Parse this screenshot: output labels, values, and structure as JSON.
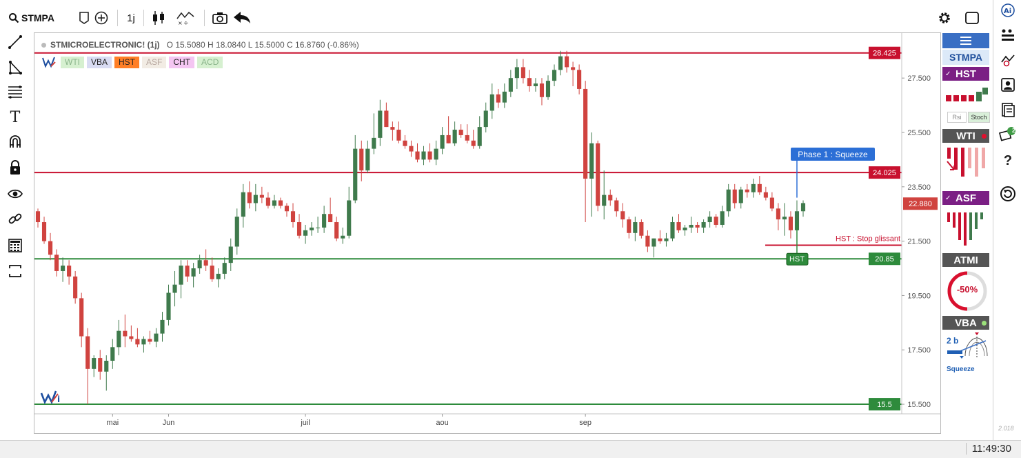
{
  "toolbar": {
    "symbol": "STMPA",
    "interval": "1j"
  },
  "legend": {
    "name": "STMICROELECTRONIC! (1j)",
    "ohlc": "O 15.5080 H 18.0840 L 15.5000 C 16.8760 (-0.86%)",
    "indicators": [
      {
        "label": "WTI",
        "bg": "#d6f0d0",
        "color": "#8ab48a"
      },
      {
        "label": "VBA",
        "bg": "#d9dcf3",
        "color": "#222222"
      },
      {
        "label": "HST",
        "bg": "#ff7f27",
        "color": "#222222"
      },
      {
        "label": "ASF",
        "bg": "#f2ece4",
        "color": "#b8a8a0"
      },
      {
        "label": "CHT",
        "bg": "#f4c6f2",
        "color": "#222222"
      },
      {
        "label": "ACD",
        "bg": "#d6f0d0",
        "color": "#8ab48a"
      }
    ]
  },
  "chart_data": {
    "type": "candlestick",
    "y_ticks": [
      "27.500",
      "25.500",
      "23.500",
      "21.500",
      "19.500",
      "17.500",
      "15.500"
    ],
    "x_ticks": [
      "mai",
      "Jun",
      "juil",
      "aou",
      "sep"
    ],
    "ylim": [
      15.4,
      28.9
    ],
    "colors": {
      "up": "#3f7a4c",
      "down": "#d0433f"
    },
    "candles": [
      [
        22.6,
        22.7,
        22.0,
        22.2
      ],
      [
        22.2,
        22.4,
        21.4,
        21.5
      ],
      [
        21.5,
        21.8,
        20.8,
        21.0
      ],
      [
        21.0,
        21.2,
        20.2,
        20.4
      ],
      [
        20.4,
        20.9,
        20.0,
        20.6
      ],
      [
        20.6,
        20.8,
        19.9,
        20.2
      ],
      [
        20.2,
        20.4,
        19.2,
        19.4
      ],
      [
        19.4,
        19.6,
        17.6,
        18.0
      ],
      [
        18.0,
        18.3,
        15.5,
        16.8
      ],
      [
        16.8,
        17.3,
        16.5,
        17.2
      ],
      [
        17.2,
        17.5,
        16.4,
        16.7
      ],
      [
        16.7,
        17.3,
        16.0,
        17.1
      ],
      [
        17.1,
        17.9,
        16.8,
        17.6
      ],
      [
        17.6,
        18.6,
        17.3,
        18.2
      ],
      [
        18.2,
        18.8,
        17.6,
        18.0
      ],
      [
        18.0,
        18.4,
        17.8,
        17.9
      ],
      [
        17.9,
        18.3,
        17.6,
        17.7
      ],
      [
        17.7,
        18.0,
        17.4,
        17.9
      ],
      [
        17.9,
        18.2,
        17.7,
        17.8
      ],
      [
        17.8,
        18.3,
        17.6,
        18.1
      ],
      [
        18.1,
        18.9,
        17.8,
        18.6
      ],
      [
        18.6,
        19.9,
        18.4,
        19.6
      ],
      [
        19.6,
        20.4,
        19.1,
        19.9
      ],
      [
        19.9,
        20.8,
        19.4,
        20.6
      ],
      [
        20.6,
        20.8,
        20.0,
        20.2
      ],
      [
        20.2,
        20.7,
        19.8,
        20.5
      ],
      [
        20.5,
        21.0,
        20.3,
        20.8
      ],
      [
        20.8,
        21.2,
        20.4,
        20.6
      ],
      [
        20.6,
        20.9,
        20.0,
        20.1
      ],
      [
        20.1,
        20.5,
        19.8,
        20.3
      ],
      [
        20.3,
        20.9,
        20.1,
        20.7
      ],
      [
        20.7,
        21.6,
        20.4,
        21.3
      ],
      [
        21.3,
        22.7,
        21.0,
        22.4
      ],
      [
        22.4,
        23.6,
        22.0,
        23.3
      ],
      [
        23.3,
        23.7,
        22.7,
        22.9
      ],
      [
        22.9,
        23.6,
        22.6,
        23.2
      ],
      [
        23.2,
        23.5,
        22.9,
        23.1
      ],
      [
        23.1,
        23.3,
        22.7,
        22.8
      ],
      [
        22.8,
        23.2,
        22.7,
        23.0
      ],
      [
        23.0,
        23.1,
        22.7,
        22.8
      ],
      [
        22.8,
        22.9,
        22.4,
        22.6
      ],
      [
        22.6,
        22.9,
        22.0,
        22.2
      ],
      [
        22.2,
        22.5,
        21.6,
        21.7
      ],
      [
        21.7,
        22.1,
        21.4,
        21.9
      ],
      [
        21.9,
        22.2,
        21.7,
        22.0
      ],
      [
        22.0,
        22.4,
        21.8,
        22.0
      ],
      [
        22.0,
        22.8,
        21.8,
        22.5
      ],
      [
        22.5,
        23.1,
        22.2,
        22.2
      ],
      [
        22.2,
        22.4,
        21.5,
        21.6
      ],
      [
        21.6,
        22.0,
        21.4,
        21.7
      ],
      [
        21.7,
        23.5,
        21.6,
        23.0
      ],
      [
        23.0,
        25.4,
        22.9,
        24.9
      ],
      [
        24.9,
        25.2,
        23.7,
        24.1
      ],
      [
        24.1,
        25.2,
        24.0,
        24.9
      ],
      [
        24.9,
        26.2,
        24.7,
        25.3
      ],
      [
        25.3,
        26.7,
        25.0,
        26.3
      ],
      [
        26.3,
        26.6,
        25.7,
        25.7
      ],
      [
        25.7,
        25.9,
        25.2,
        25.6
      ],
      [
        25.6,
        25.9,
        25.1,
        25.2
      ],
      [
        25.2,
        25.4,
        24.9,
        25.0
      ],
      [
        25.0,
        25.2,
        24.6,
        24.8
      ],
      [
        24.8,
        25.1,
        24.4,
        24.5
      ],
      [
        24.5,
        25.0,
        24.3,
        24.8
      ],
      [
        24.8,
        25.1,
        24.4,
        24.5
      ],
      [
        24.5,
        25.2,
        24.3,
        24.9
      ],
      [
        24.9,
        25.7,
        24.7,
        25.4
      ],
      [
        25.4,
        26.1,
        25.1,
        25.1
      ],
      [
        25.1,
        25.9,
        25.0,
        25.6
      ],
      [
        25.6,
        25.8,
        25.3,
        25.4
      ],
      [
        25.4,
        25.8,
        25.1,
        25.2
      ],
      [
        25.2,
        25.6,
        24.9,
        25.0
      ],
      [
        25.0,
        26.1,
        24.9,
        25.7
      ],
      [
        25.7,
        26.6,
        25.5,
        26.3
      ],
      [
        26.3,
        27.3,
        26.0,
        26.9
      ],
      [
        26.9,
        27.1,
        26.4,
        26.6
      ],
      [
        26.6,
        27.3,
        26.4,
        27.0
      ],
      [
        27.0,
        27.8,
        26.8,
        27.5
      ],
      [
        27.5,
        28.2,
        27.1,
        27.9
      ],
      [
        27.9,
        28.2,
        27.3,
        27.5
      ],
      [
        27.5,
        27.8,
        27.0,
        27.2
      ],
      [
        27.2,
        27.5,
        27.0,
        27.3
      ],
      [
        27.3,
        27.5,
        26.5,
        26.8
      ],
      [
        26.8,
        27.6,
        26.7,
        27.4
      ],
      [
        27.4,
        28.0,
        27.2,
        27.8
      ],
      [
        27.8,
        28.5,
        27.6,
        28.3
      ],
      [
        28.3,
        28.5,
        27.7,
        27.9
      ],
      [
        27.9,
        28.1,
        27.2,
        27.8
      ],
      [
        27.8,
        28.0,
        26.9,
        27.1
      ],
      [
        27.1,
        27.4,
        22.2,
        23.8
      ],
      [
        23.8,
        25.5,
        22.4,
        25.1
      ],
      [
        25.1,
        25.2,
        22.6,
        22.8
      ],
      [
        22.8,
        24.1,
        22.3,
        23.2
      ],
      [
        23.2,
        23.4,
        22.8,
        23.0
      ],
      [
        23.0,
        23.1,
        22.4,
        22.6
      ],
      [
        22.6,
        22.9,
        22.0,
        22.3
      ],
      [
        22.3,
        22.4,
        21.6,
        21.8
      ],
      [
        21.8,
        22.4,
        21.5,
        22.2
      ],
      [
        22.2,
        22.3,
        21.6,
        21.7
      ],
      [
        21.7,
        21.9,
        21.1,
        21.3
      ],
      [
        21.3,
        21.6,
        20.9,
        21.6
      ],
      [
        21.6,
        21.9,
        21.4,
        21.5
      ],
      [
        21.5,
        21.8,
        21.3,
        21.6
      ],
      [
        21.6,
        22.4,
        21.5,
        22.2
      ],
      [
        22.2,
        22.5,
        21.8,
        21.9
      ],
      [
        21.9,
        22.1,
        21.7,
        22.0
      ],
      [
        22.0,
        22.4,
        21.8,
        22.1
      ],
      [
        22.1,
        22.2,
        21.8,
        22.0
      ],
      [
        22.0,
        22.3,
        21.8,
        22.2
      ],
      [
        22.2,
        22.6,
        22.0,
        22.4
      ],
      [
        22.4,
        22.5,
        22.0,
        22.1
      ],
      [
        22.1,
        22.8,
        22.0,
        22.6
      ],
      [
        22.6,
        23.6,
        22.4,
        23.4
      ],
      [
        23.4,
        23.6,
        22.7,
        22.9
      ],
      [
        22.9,
        23.5,
        22.7,
        23.4
      ],
      [
        23.4,
        23.6,
        23.1,
        23.3
      ],
      [
        23.3,
        23.8,
        23.1,
        23.6
      ],
      [
        23.6,
        23.9,
        23.2,
        23.3
      ],
      [
        23.3,
        23.5,
        23.0,
        23.1
      ],
      [
        23.1,
        23.3,
        22.6,
        22.7
      ],
      [
        22.7,
        22.9,
        21.9,
        22.3
      ],
      [
        22.3,
        22.9,
        21.7,
        22.4
      ],
      [
        22.4,
        22.6,
        21.6,
        21.9
      ],
      [
        21.9,
        23.0,
        21.6,
        22.6
      ],
      [
        22.6,
        23.0,
        22.4,
        22.9
      ]
    ],
    "levels": [
      {
        "value": 28.425,
        "label": "28.425",
        "color": "#c8102e"
      },
      {
        "value": 24.025,
        "label": "24.025",
        "color": "#c8102e"
      },
      {
        "value": 20.85,
        "label": "20.85",
        "color": "#2e8b3c"
      },
      {
        "value": 15.5,
        "label": "15.5",
        "color": "#2e8b3c"
      }
    ],
    "last_price": {
      "value": 22.88,
      "label": "22.880",
      "color": "#d0433f"
    },
    "annotations": {
      "phase": "Phase 1 : Squeeze",
      "stop": "HST : Stop glissant",
      "hst_tag": "HST",
      "stop_value": 21.35
    }
  },
  "right_panel": {
    "symbol": "STMPA",
    "hst": "HST",
    "rsi": "Rsi",
    "stoch": "Stoch",
    "wti": "WTI",
    "asf": "ASF",
    "atmi": "ATMI",
    "atmi_value": "-50%",
    "vba": "VBA",
    "vba_count": "2 b",
    "vba_state": "Squeeze"
  },
  "far_right": {
    "badge": "2",
    "help": "?"
  },
  "version": "2.018",
  "clock": "11:49:30"
}
